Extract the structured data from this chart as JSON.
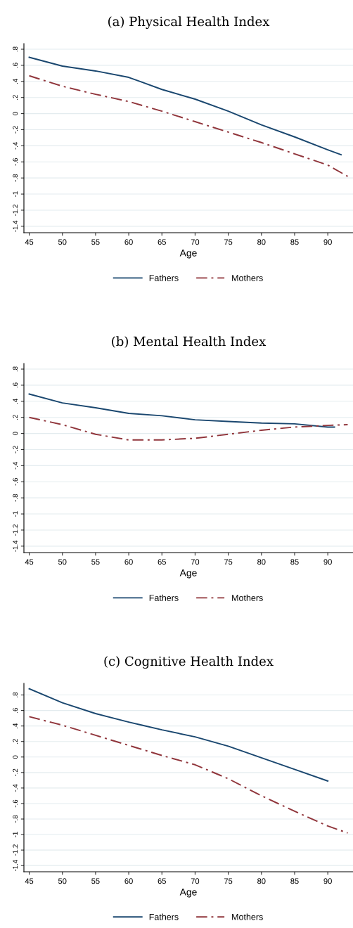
{
  "chart_data": [
    {
      "type": "line",
      "title": "(a) Physical Health Index",
      "xlabel": "Age",
      "xlim": [
        44.2,
        93.8
      ],
      "xticks": [
        45,
        50,
        55,
        60,
        65,
        70,
        75,
        80,
        85,
        90
      ],
      "ylim": [
        -1.48,
        0.87
      ],
      "yticks": [
        {
          "value": 0.8,
          "label": ".8"
        },
        {
          "value": 0.6,
          "label": ".6"
        },
        {
          "value": 0.4,
          "label": ".4"
        },
        {
          "value": 0.2,
          "label": ".2"
        },
        0,
        {
          "value": -0.2,
          "label": "-.2"
        },
        {
          "value": -0.4,
          "label": "-.4"
        },
        {
          "value": -0.6,
          "label": "-.6"
        },
        {
          "value": -0.8,
          "label": "-.8"
        },
        -1,
        -1.2,
        -1.4
      ],
      "grid": "y",
      "legend": "bottom",
      "series": [
        {
          "name": "Fathers",
          "color": "#1a476f",
          "line_style": "solid",
          "x": [
            45,
            50,
            55,
            60,
            62,
            65,
            70,
            75,
            80,
            85,
            90,
            92
          ],
          "values": [
            0.7,
            0.59,
            0.53,
            0.45,
            0.39,
            0.3,
            0.18,
            0.03,
            -0.14,
            -0.29,
            -0.45,
            -0.51
          ]
        },
        {
          "name": "Mothers",
          "color": "#90353b",
          "line_style": "dashdot",
          "x": [
            45,
            50,
            55,
            60,
            65,
            70,
            75,
            80,
            85,
            90,
            93
          ],
          "values": [
            0.47,
            0.34,
            0.24,
            0.15,
            0.03,
            -0.1,
            -0.23,
            -0.36,
            -0.5,
            -0.64,
            -0.78
          ]
        }
      ]
    },
    {
      "type": "line",
      "title": "(b) Mental Health Index",
      "xlabel": "Age",
      "xlim": [
        44.2,
        93.8
      ],
      "xticks": [
        45,
        50,
        55,
        60,
        65,
        70,
        75,
        80,
        85,
        90
      ],
      "ylim": [
        -1.48,
        0.87
      ],
      "yticks": [
        {
          "value": 0.8,
          "label": ".8"
        },
        {
          "value": 0.6,
          "label": ".6"
        },
        {
          "value": 0.4,
          "label": ".4"
        },
        {
          "value": 0.2,
          "label": ".2"
        },
        0,
        {
          "value": -0.2,
          "label": "-.2"
        },
        {
          "value": -0.4,
          "label": "-.4"
        },
        {
          "value": -0.6,
          "label": "-.6"
        },
        {
          "value": -0.8,
          "label": "-.8"
        },
        -1,
        -1.2,
        -1.4
      ],
      "grid": "y",
      "legend": "bottom",
      "series": [
        {
          "name": "Fathers",
          "color": "#1a476f",
          "line_style": "solid",
          "x": [
            45,
            50,
            55,
            60,
            65,
            70,
            75,
            80,
            85,
            90,
            91
          ],
          "values": [
            0.49,
            0.38,
            0.32,
            0.25,
            0.22,
            0.17,
            0.15,
            0.13,
            0.12,
            0.08,
            0.08
          ]
        },
        {
          "name": "Mothers",
          "color": "#90353b",
          "line_style": "dashdot",
          "x": [
            45,
            50,
            55,
            60,
            65,
            70,
            75,
            80,
            85,
            90,
            93
          ],
          "values": [
            0.2,
            0.11,
            -0.01,
            -0.08,
            -0.08,
            -0.06,
            -0.01,
            0.04,
            0.08,
            0.1,
            0.11
          ]
        }
      ]
    },
    {
      "type": "line",
      "title": "(c) Cognitive Health Index",
      "xlabel": "Age",
      "xlim": [
        44.2,
        93.8
      ],
      "xticks": [
        45,
        50,
        55,
        60,
        65,
        70,
        75,
        80,
        85,
        90
      ],
      "ylim": [
        -1.48,
        0.95
      ],
      "yticks": [
        {
          "value": 0.8,
          "label": ".8"
        },
        {
          "value": 0.6,
          "label": ".6"
        },
        {
          "value": 0.4,
          "label": ".4"
        },
        {
          "value": 0.2,
          "label": ".2"
        },
        0,
        {
          "value": -0.2,
          "label": "-.2"
        },
        {
          "value": -0.4,
          "label": "-.4"
        },
        {
          "value": -0.6,
          "label": "-.6"
        },
        {
          "value": -0.8,
          "label": "-.8"
        },
        -1,
        -1.2,
        -1.4
      ],
      "grid": "y",
      "legend": "bottom",
      "series": [
        {
          "name": "Fathers",
          "color": "#1a476f",
          "line_style": "solid",
          "x": [
            45,
            50,
            55,
            60,
            62,
            65,
            70,
            75,
            80,
            85,
            90
          ],
          "values": [
            0.88,
            0.7,
            0.56,
            0.45,
            0.41,
            0.35,
            0.26,
            0.14,
            -0.01,
            -0.16,
            -0.31
          ]
        },
        {
          "name": "Mothers",
          "color": "#90353b",
          "line_style": "dashdot",
          "x": [
            45,
            50,
            55,
            60,
            65,
            70,
            75,
            80,
            85,
            90,
            93
          ],
          "values": [
            0.52,
            0.41,
            0.28,
            0.15,
            0.02,
            -0.1,
            -0.28,
            -0.5,
            -0.7,
            -0.89,
            -0.98
          ]
        }
      ]
    }
  ]
}
